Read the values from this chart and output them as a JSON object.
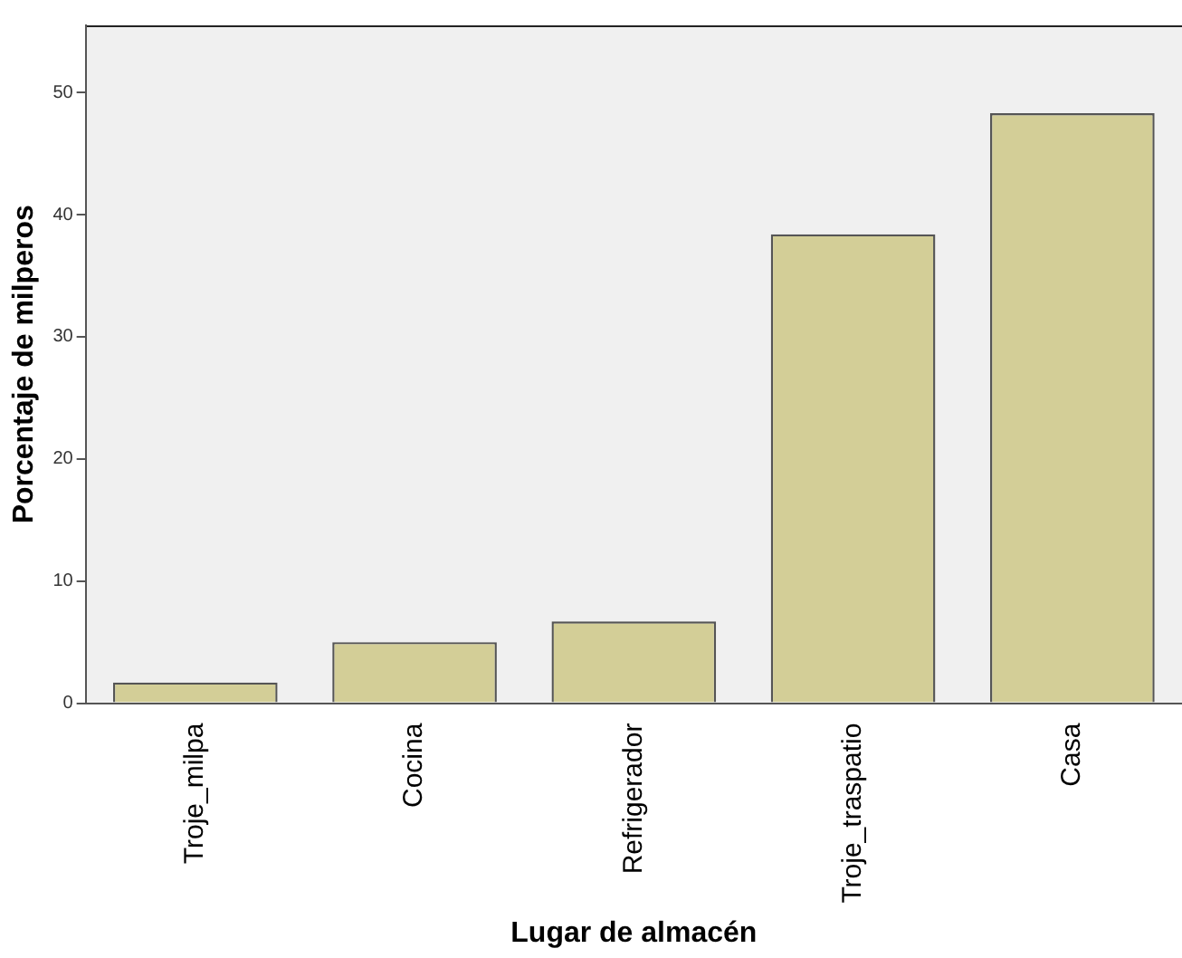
{
  "chart_data": {
    "type": "bar",
    "xlabel": "Lugar de almacén",
    "ylabel": "Porcentaje de milperos",
    "categories": [
      "Troje_milpa",
      "Cocina",
      "Refrigerador",
      "Troje_traspatio",
      "Casa"
    ],
    "values": [
      1.7,
      5.0,
      6.7,
      38.4,
      48.3
    ],
    "color": "#d3ce97",
    "ylim": [
      0,
      55.5
    ],
    "yticks": [
      0,
      10,
      20,
      30,
      40,
      50
    ],
    "grid": false,
    "legend": false
  }
}
